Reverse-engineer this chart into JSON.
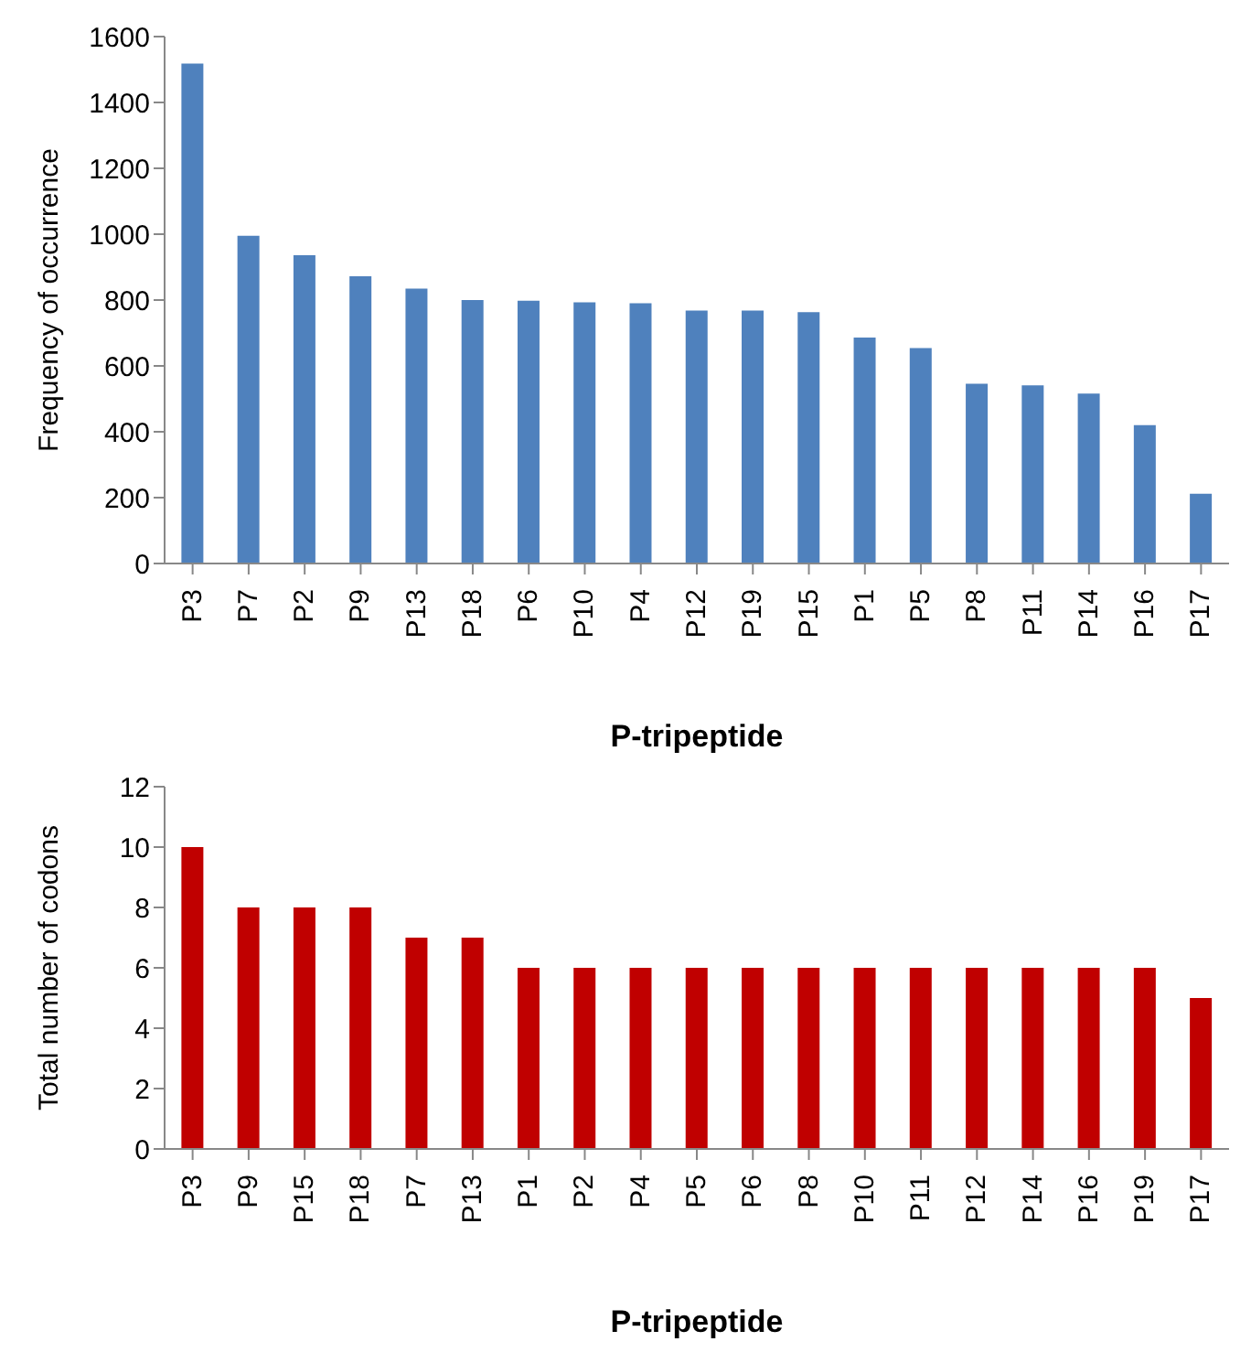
{
  "chart_data": [
    {
      "type": "bar",
      "xlabel": "P-tripeptide",
      "ylabel": "Frequency of occurrence",
      "categories": [
        "P3",
        "P7",
        "P2",
        "P9",
        "P13",
        "P18",
        "P6",
        "P10",
        "P4",
        "P12",
        "P19",
        "P15",
        "P1",
        "P5",
        "P8",
        "P11",
        "P14",
        "P16",
        "P17"
      ],
      "values": [
        1518,
        995,
        936,
        872,
        835,
        800,
        798,
        793,
        790,
        768,
        768,
        763,
        686,
        654,
        546,
        541,
        516,
        420,
        212
      ],
      "color": "#4f81bd",
      "ylim": [
        0,
        1600
      ],
      "yticks": [
        0,
        200,
        400,
        600,
        800,
        1000,
        1200,
        1400,
        1600
      ],
      "grid": false
    },
    {
      "type": "bar",
      "xlabel": "P-tripeptide",
      "ylabel": "Total number of codons",
      "categories": [
        "P3",
        "P9",
        "P15",
        "P18",
        "P7",
        "P13",
        "P1",
        "P2",
        "P4",
        "P5",
        "P6",
        "P8",
        "P10",
        "P11",
        "P12",
        "P14",
        "P16",
        "P19",
        "P17"
      ],
      "values": [
        10,
        8,
        8,
        8,
        7,
        7,
        6,
        6,
        6,
        6,
        6,
        6,
        6,
        6,
        6,
        6,
        6,
        6,
        5
      ],
      "color": "#c00000",
      "ylim": [
        0,
        12
      ],
      "yticks": [
        0,
        2,
        4,
        6,
        8,
        10,
        12
      ],
      "grid": false
    }
  ]
}
